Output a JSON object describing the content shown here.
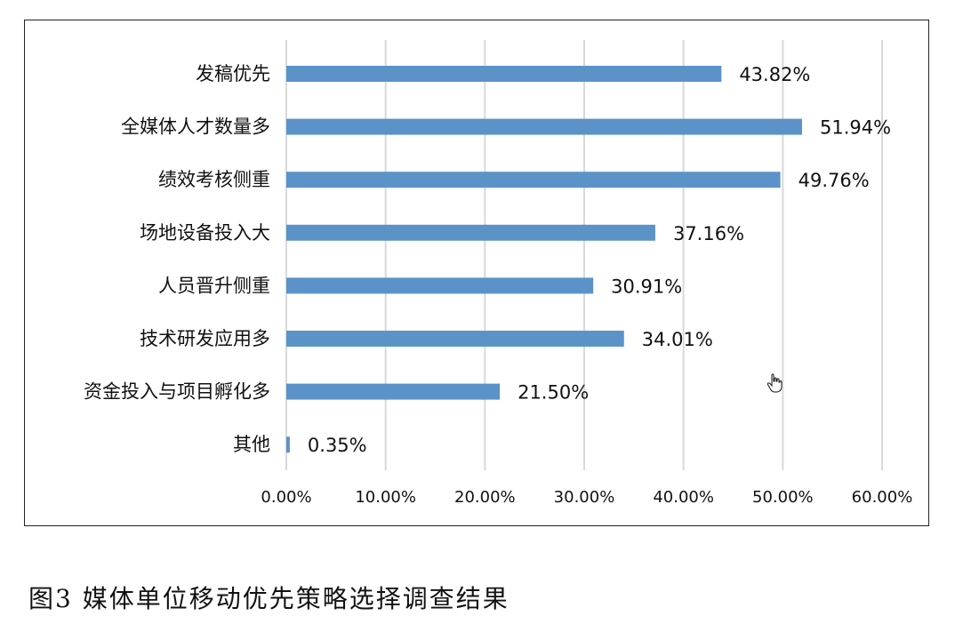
{
  "chart_data": {
    "type": "bar",
    "orientation": "horizontal",
    "categories": [
      "发稿优先",
      "全媒体人才数量多",
      "绩效考核侧重",
      "场地设备投入大",
      "人员晋升侧重",
      "技术研发应用多",
      "资金投入与项目孵化多",
      "其他"
    ],
    "values": [
      43.82,
      51.94,
      49.76,
      37.16,
      30.91,
      34.01,
      21.5,
      0.35
    ],
    "value_labels": [
      "43.82%",
      "51.94%",
      "49.76%",
      "37.16%",
      "30.91%",
      "34.01%",
      "21.50%",
      "0.35%"
    ],
    "xlim": [
      0,
      60
    ],
    "x_ticks": [
      "0.00%",
      "10.00%",
      "20.00%",
      "30.00%",
      "40.00%",
      "50.00%",
      "60.00%"
    ],
    "grid": "vertical",
    "bar_color": "#5b93c9"
  },
  "caption": "图3  媒体单位移动优先策略选择调查结果",
  "cursor_icon": "hand-pointer-icon"
}
